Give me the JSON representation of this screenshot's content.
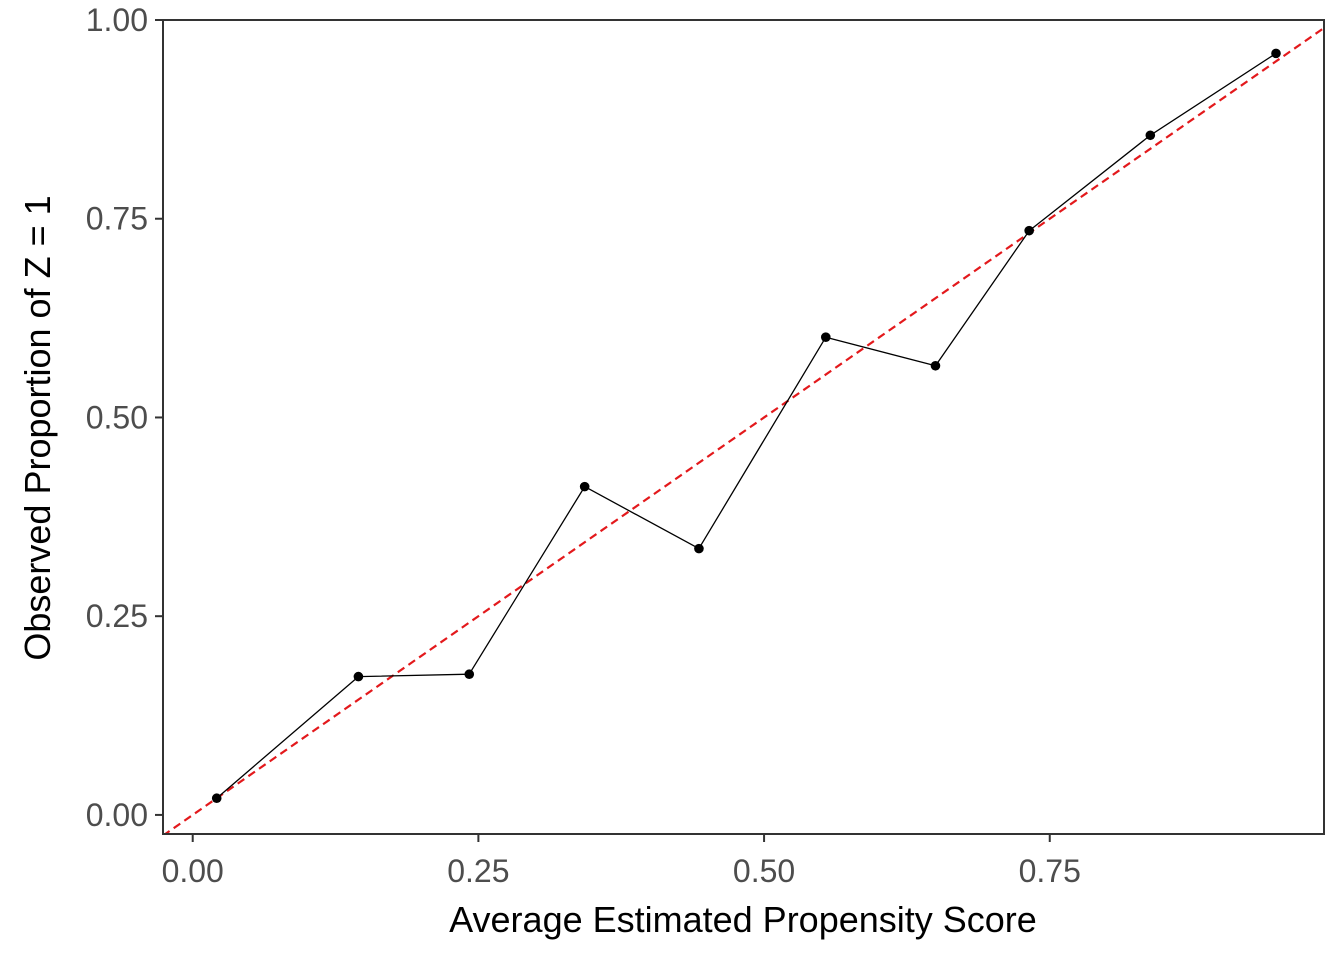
{
  "chart_data": {
    "type": "line",
    "title": "",
    "xlabel": "Average Estimated Propensity Score",
    "ylabel": "Observed Proportion of Z = 1",
    "xlim": [
      -0.026,
      0.99
    ],
    "ylim": [
      -0.024,
      1.0
    ],
    "x_ticks": [
      0.0,
      0.25,
      0.5,
      0.75
    ],
    "x_tick_labels": [
      "0.00",
      "0.25",
      "0.50",
      "0.75"
    ],
    "y_ticks": [
      0.0,
      0.25,
      0.5,
      0.75,
      1.0
    ],
    "y_tick_labels": [
      "0.00",
      "0.25",
      "0.50",
      "0.75",
      "1.00"
    ],
    "grid": false,
    "legend": "none",
    "series": [
      {
        "x": [
          0.021,
          0.145,
          0.242,
          0.343,
          0.443,
          0.554,
          0.65,
          0.732,
          0.838,
          0.948
        ],
        "y": [
          0.021,
          0.174,
          0.177,
          0.413,
          0.335,
          0.601,
          0.565,
          0.735,
          0.855,
          0.958
        ],
        "color": "#000000",
        "style": "solid",
        "markers": true
      }
    ],
    "reference_line": {
      "slope": 1,
      "intercept": 0,
      "color": "#e3191c",
      "style": "dashed"
    }
  }
}
